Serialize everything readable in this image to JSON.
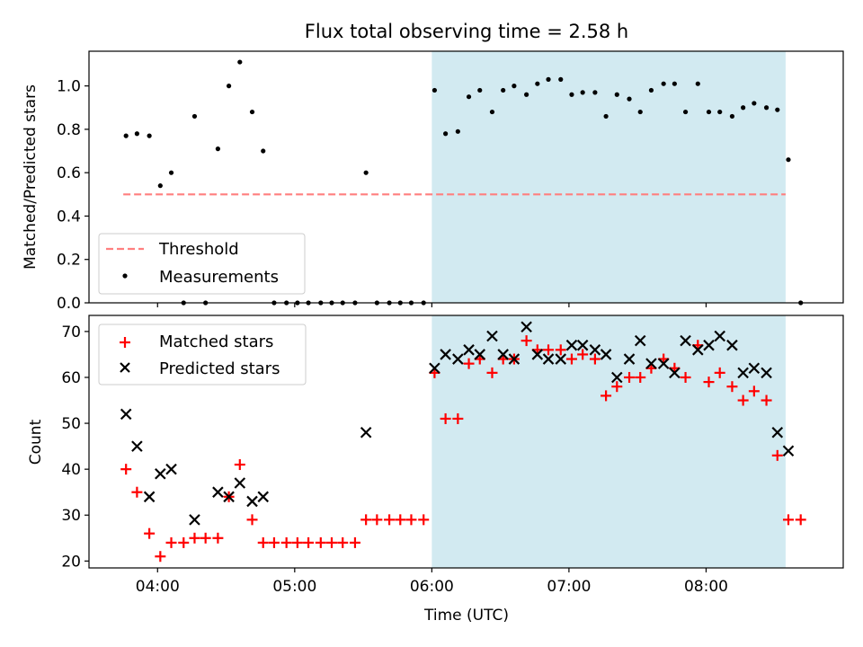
{
  "chart_data": {
    "title": "Flux total observing time = 2.58 h",
    "xlabel": "Time (UTC)",
    "x_unit": "hours UTC",
    "xlim": [
      3.5,
      9.0
    ],
    "x_tick_labels": [
      {
        "t": 4.0,
        "label": "04:00"
      },
      {
        "t": 5.0,
        "label": "05:00"
      },
      {
        "t": 6.0,
        "label": "06:00"
      },
      {
        "t": 7.0,
        "label": "07:00"
      },
      {
        "t": 8.0,
        "label": "08:00"
      }
    ],
    "shaded_span": {
      "start": 6.0,
      "end": 8.58,
      "color": "#add8e6"
    },
    "top_panel": {
      "type": "scatter",
      "ylabel": "Matched/Predicted stars",
      "ylim": [
        0,
        1.16
      ],
      "y_ticks": [
        "0.0",
        "0.2",
        "0.4",
        "0.6",
        "0.8",
        "1.0"
      ],
      "legend": {
        "position": "lower-left"
      },
      "threshold": {
        "name": "Threshold",
        "value": 0.5,
        "x_start": 3.75,
        "x_end": 8.58,
        "color": "#ff7f7f"
      },
      "measurements": {
        "name": "Measurements",
        "color": "#000000",
        "points": [
          [
            3.77,
            0.77
          ],
          [
            3.85,
            0.78
          ],
          [
            3.94,
            0.77
          ],
          [
            4.02,
            0.54
          ],
          [
            4.1,
            0.6
          ],
          [
            4.19,
            0.0
          ],
          [
            4.27,
            0.86
          ],
          [
            4.35,
            0.0
          ],
          [
            4.44,
            0.71
          ],
          [
            4.52,
            1.0
          ],
          [
            4.6,
            1.11
          ],
          [
            4.69,
            0.88
          ],
          [
            4.77,
            0.7
          ],
          [
            4.85,
            0.0
          ],
          [
            4.94,
            0.0
          ],
          [
            5.02,
            0.0
          ],
          [
            5.1,
            0.0
          ],
          [
            5.19,
            0.0
          ],
          [
            5.27,
            0.0
          ],
          [
            5.35,
            0.0
          ],
          [
            5.44,
            0.0
          ],
          [
            5.52,
            0.6
          ],
          [
            5.6,
            0.0
          ],
          [
            5.69,
            0.0
          ],
          [
            5.77,
            0.0
          ],
          [
            5.85,
            0.0
          ],
          [
            5.94,
            0.0
          ],
          [
            6.02,
            0.98
          ],
          [
            6.1,
            0.78
          ],
          [
            6.19,
            0.79
          ],
          [
            6.27,
            0.95
          ],
          [
            6.35,
            0.98
          ],
          [
            6.44,
            0.88
          ],
          [
            6.52,
            0.98
          ],
          [
            6.6,
            1.0
          ],
          [
            6.69,
            0.96
          ],
          [
            6.77,
            1.01
          ],
          [
            6.85,
            1.03
          ],
          [
            6.94,
            1.03
          ],
          [
            7.02,
            0.96
          ],
          [
            7.1,
            0.97
          ],
          [
            7.19,
            0.97
          ],
          [
            7.27,
            0.86
          ],
          [
            7.35,
            0.96
          ],
          [
            7.44,
            0.94
          ],
          [
            7.52,
            0.88
          ],
          [
            7.6,
            0.98
          ],
          [
            7.69,
            1.01
          ],
          [
            7.77,
            1.01
          ],
          [
            7.85,
            0.88
          ],
          [
            7.94,
            1.01
          ],
          [
            8.02,
            0.88
          ],
          [
            8.1,
            0.88
          ],
          [
            8.19,
            0.86
          ],
          [
            8.27,
            0.9
          ],
          [
            8.35,
            0.92
          ],
          [
            8.44,
            0.9
          ],
          [
            8.52,
            0.89
          ],
          [
            8.6,
            0.66
          ],
          [
            8.69,
            0.0
          ]
        ]
      }
    },
    "bottom_panel": {
      "type": "scatter",
      "ylabel": "Count",
      "ylim": [
        18.5,
        73.5
      ],
      "y_ticks": [
        "20",
        "30",
        "40",
        "50",
        "60",
        "70"
      ],
      "legend": {
        "position": "upper-left"
      },
      "series": [
        {
          "name": "Matched stars",
          "marker": "+",
          "color": "#ff0000",
          "points": [
            [
              3.77,
              40
            ],
            [
              3.85,
              35
            ],
            [
              3.94,
              26
            ],
            [
              4.02,
              21
            ],
            [
              4.1,
              24
            ],
            [
              4.19,
              24
            ],
            [
              4.27,
              25
            ],
            [
              4.35,
              25
            ],
            [
              4.44,
              25
            ],
            [
              4.52,
              34
            ],
            [
              4.6,
              41
            ],
            [
              4.69,
              29
            ],
            [
              4.77,
              24
            ],
            [
              4.85,
              24
            ],
            [
              4.94,
              24
            ],
            [
              5.02,
              24
            ],
            [
              5.1,
              24
            ],
            [
              5.19,
              24
            ],
            [
              5.27,
              24
            ],
            [
              5.35,
              24
            ],
            [
              5.44,
              24
            ],
            [
              5.52,
              29
            ],
            [
              5.6,
              29
            ],
            [
              5.69,
              29
            ],
            [
              5.77,
              29
            ],
            [
              5.85,
              29
            ],
            [
              5.94,
              29
            ],
            [
              6.02,
              61
            ],
            [
              6.1,
              51
            ],
            [
              6.19,
              51
            ],
            [
              6.27,
              63
            ],
            [
              6.35,
              64
            ],
            [
              6.44,
              61
            ],
            [
              6.52,
              64
            ],
            [
              6.6,
              64
            ],
            [
              6.69,
              68
            ],
            [
              6.77,
              66
            ],
            [
              6.85,
              66
            ],
            [
              6.94,
              66
            ],
            [
              7.02,
              64
            ],
            [
              7.1,
              65
            ],
            [
              7.19,
              64
            ],
            [
              7.27,
              56
            ],
            [
              7.35,
              58
            ],
            [
              7.44,
              60
            ],
            [
              7.52,
              60
            ],
            [
              7.6,
              62
            ],
            [
              7.69,
              64
            ],
            [
              7.77,
              62
            ],
            [
              7.85,
              60
            ],
            [
              7.94,
              67
            ],
            [
              8.02,
              59
            ],
            [
              8.1,
              61
            ],
            [
              8.19,
              58
            ],
            [
              8.27,
              55
            ],
            [
              8.35,
              57
            ],
            [
              8.44,
              55
            ],
            [
              8.52,
              43
            ],
            [
              8.6,
              29
            ],
            [
              8.69,
              29
            ]
          ]
        },
        {
          "name": "Predicted stars",
          "marker": "x",
          "color": "#000000",
          "points": [
            [
              3.77,
              52
            ],
            [
              3.85,
              45
            ],
            [
              3.94,
              34
            ],
            [
              4.02,
              39
            ],
            [
              4.1,
              40
            ],
            [
              4.27,
              29
            ],
            [
              4.44,
              35
            ],
            [
              4.52,
              34
            ],
            [
              4.6,
              37
            ],
            [
              4.69,
              33
            ],
            [
              4.77,
              34
            ],
            [
              5.52,
              48
            ],
            [
              6.02,
              62
            ],
            [
              6.1,
              65
            ],
            [
              6.19,
              64
            ],
            [
              6.27,
              66
            ],
            [
              6.35,
              65
            ],
            [
              6.44,
              69
            ],
            [
              6.52,
              65
            ],
            [
              6.6,
              64
            ],
            [
              6.69,
              71
            ],
            [
              6.77,
              65
            ],
            [
              6.85,
              64
            ],
            [
              6.94,
              64
            ],
            [
              7.02,
              67
            ],
            [
              7.1,
              67
            ],
            [
              7.19,
              66
            ],
            [
              7.27,
              65
            ],
            [
              7.35,
              60
            ],
            [
              7.44,
              64
            ],
            [
              7.52,
              68
            ],
            [
              7.6,
              63
            ],
            [
              7.69,
              63
            ],
            [
              7.77,
              61
            ],
            [
              7.85,
              68
            ],
            [
              7.94,
              66
            ],
            [
              8.02,
              67
            ],
            [
              8.1,
              69
            ],
            [
              8.19,
              67
            ],
            [
              8.27,
              61
            ],
            [
              8.35,
              62
            ],
            [
              8.44,
              61
            ],
            [
              8.52,
              48
            ],
            [
              8.6,
              44
            ]
          ]
        }
      ]
    }
  }
}
